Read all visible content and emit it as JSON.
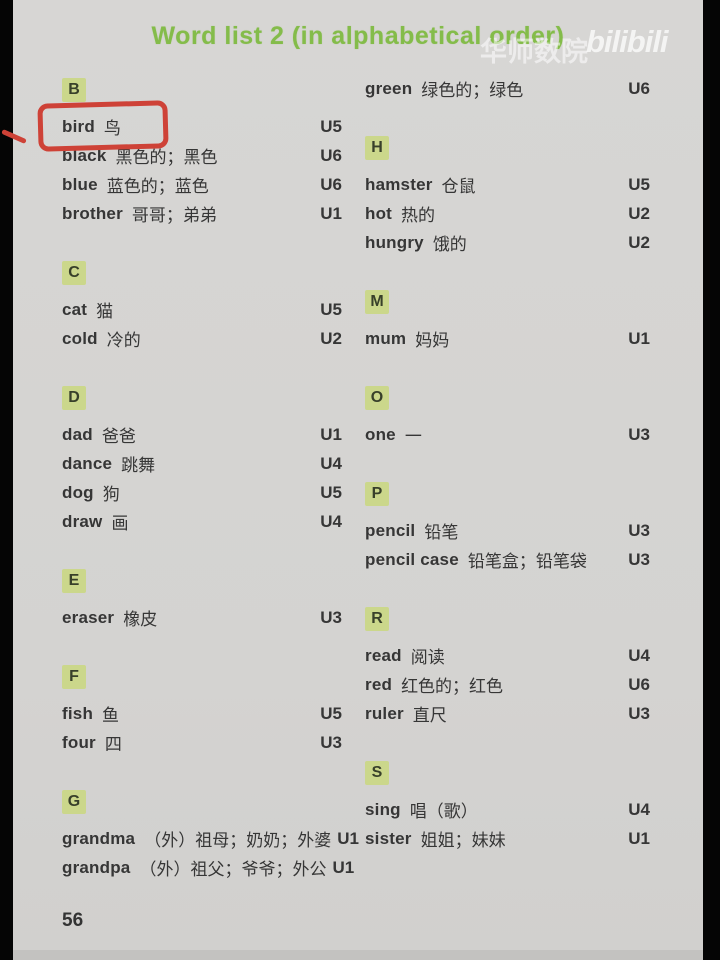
{
  "page": {
    "title": "Word list 2 (in alphabetical order)",
    "page_number": "56",
    "watermark": {
      "text": "华师数院",
      "logo": "bilibili"
    },
    "annotation": {
      "target_word": "bird",
      "style": "hand-drawn-red-box",
      "color": "#ce4237"
    },
    "colors": {
      "title_green": "#84bc4a",
      "letter_highlight": "#cbd78b",
      "page_background": "#d5d4d2",
      "text": "#363636"
    }
  },
  "columns": [
    {
      "blocks": [
        {
          "type": "letter",
          "label": "B"
        },
        {
          "type": "entry",
          "word": "bird",
          "cn": "鸟",
          "unit": "U5",
          "annotated": true
        },
        {
          "type": "entry",
          "word": "black",
          "cn": "黑色的；黑色",
          "unit": "U6"
        },
        {
          "type": "entry",
          "word": "blue",
          "cn": "蓝色的；蓝色",
          "unit": "U6"
        },
        {
          "type": "entry",
          "word": "brother",
          "cn": "哥哥；弟弟",
          "unit": "U1"
        },
        {
          "type": "letter",
          "label": "C"
        },
        {
          "type": "entry",
          "word": "cat",
          "cn": "猫",
          "unit": "U5"
        },
        {
          "type": "entry",
          "word": "cold",
          "cn": "冷的",
          "unit": "U2"
        },
        {
          "type": "letter",
          "label": "D"
        },
        {
          "type": "entry",
          "word": "dad",
          "cn": "爸爸",
          "unit": "U1"
        },
        {
          "type": "entry",
          "word": "dance",
          "cn": "跳舞",
          "unit": "U4"
        },
        {
          "type": "entry",
          "word": "dog",
          "cn": "狗",
          "unit": "U5"
        },
        {
          "type": "entry",
          "word": "draw",
          "cn": "画",
          "unit": "U4"
        },
        {
          "type": "letter",
          "label": "E"
        },
        {
          "type": "entry",
          "word": "eraser",
          "cn": "橡皮",
          "unit": "U3"
        },
        {
          "type": "letter",
          "label": "F"
        },
        {
          "type": "entry",
          "word": "fish",
          "cn": "鱼",
          "unit": "U5"
        },
        {
          "type": "entry",
          "word": "four",
          "cn": "四",
          "unit": "U3"
        },
        {
          "type": "letter",
          "label": "G"
        },
        {
          "type": "entry",
          "word": "grandma",
          "cn": "（外）祖母；奶奶；外婆",
          "unit": "U1"
        },
        {
          "type": "entry",
          "word": "grandpa",
          "cn": "（外）祖父；爷爷；外公",
          "unit": "U1"
        }
      ]
    },
    {
      "blocks": [
        {
          "type": "entry",
          "word": "green",
          "cn": "绿色的；绿色",
          "unit": "U6"
        },
        {
          "type": "letter",
          "label": "H"
        },
        {
          "type": "entry",
          "word": "hamster",
          "cn": "仓鼠",
          "unit": "U5"
        },
        {
          "type": "entry",
          "word": "hot",
          "cn": "热的",
          "unit": "U2"
        },
        {
          "type": "entry",
          "word": "hungry",
          "cn": "饿的",
          "unit": "U2"
        },
        {
          "type": "letter",
          "label": "M"
        },
        {
          "type": "entry",
          "word": "mum",
          "cn": "妈妈",
          "unit": "U1"
        },
        {
          "type": "letter",
          "label": "O"
        },
        {
          "type": "entry",
          "word": "one",
          "cn": "一",
          "unit": "U3"
        },
        {
          "type": "letter",
          "label": "P"
        },
        {
          "type": "entry",
          "word": "pencil",
          "cn": "铅笔",
          "unit": "U3"
        },
        {
          "type": "entry",
          "word": "pencil case",
          "cn": "铅笔盒；铅笔袋",
          "unit": "U3"
        },
        {
          "type": "letter",
          "label": "R"
        },
        {
          "type": "entry",
          "word": "read",
          "cn": "阅读",
          "unit": "U4"
        },
        {
          "type": "entry",
          "word": "red",
          "cn": "红色的；红色",
          "unit": "U6"
        },
        {
          "type": "entry",
          "word": "ruler",
          "cn": "直尺",
          "unit": "U3"
        },
        {
          "type": "letter",
          "label": "S"
        },
        {
          "type": "entry",
          "word": "sing",
          "cn": "唱（歌）",
          "unit": "U4"
        },
        {
          "type": "entry",
          "word": "sister",
          "cn": "姐姐；妹妹",
          "unit": "U1"
        }
      ]
    }
  ]
}
